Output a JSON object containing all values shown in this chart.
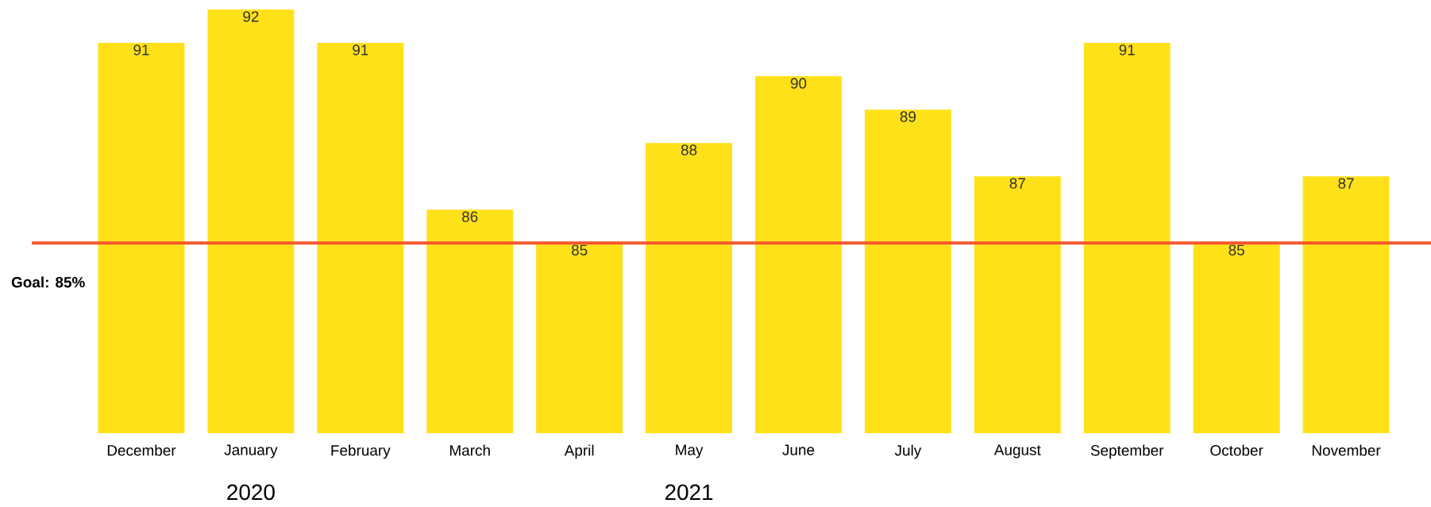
{
  "chart_data": {
    "type": "bar",
    "categories": [
      "December",
      "January",
      "February",
      "March",
      "April",
      "May",
      "June",
      "July",
      "August",
      "September",
      "October",
      "November"
    ],
    "values": [
      91,
      92,
      91,
      86,
      85,
      88,
      90,
      89,
      87,
      91,
      85,
      87
    ],
    "color": "#ffe11a",
    "data_labels": true,
    "ylim": [
      79.3,
      92
    ],
    "ref_lines": [
      {
        "axis": "y",
        "value": 85,
        "label": "Goal: 85%",
        "color": "#f4582e"
      }
    ],
    "annotations": [
      "2020",
      "2021"
    ]
  }
}
